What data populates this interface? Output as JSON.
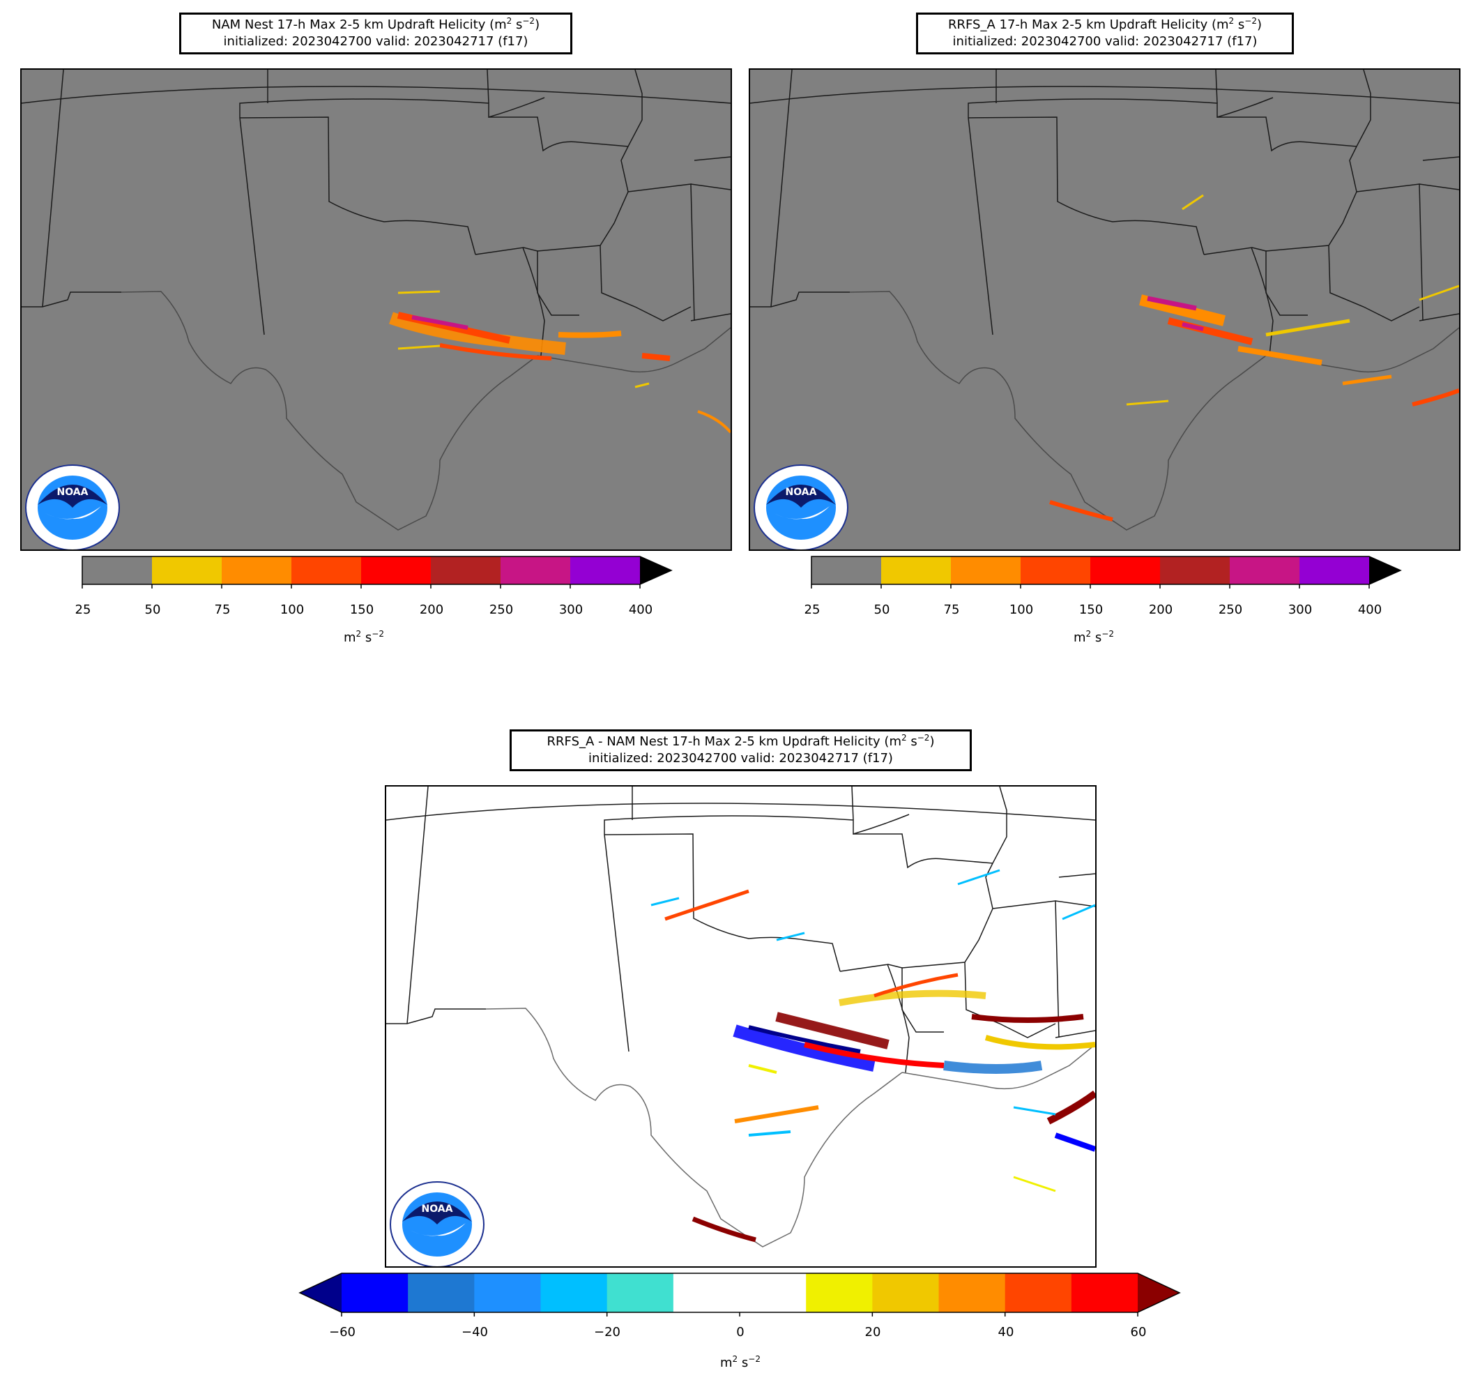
{
  "panels": [
    {
      "id": "nam",
      "title_line1": "NAM Nest 17-h Max 2-5 km Updraft Helicity (m",
      "title_sup1": "2",
      "title_mid": " s",
      "title_sup2": "−2",
      "title_end": ")",
      "title_line2": "initialized: 2023042700 valid: 2023042717 (f17)",
      "background": "#808080"
    },
    {
      "id": "rrfs",
      "title_line1": "RRFS_A 17-h Max 2-5 km Updraft Helicity (m",
      "title_sup1": "2",
      "title_mid": " s",
      "title_sup2": "−2",
      "title_end": ")",
      "title_line2": "initialized: 2023042700 valid: 2023042717 (f17)",
      "background": "#808080"
    },
    {
      "id": "diff",
      "title_line1": "RRFS_A - NAM Nest 17-h Max 2-5 km Updraft Helicity (m",
      "title_sup1": "2",
      "title_mid": " s",
      "title_sup2": "−2",
      "title_end": ")",
      "title_line2": "initialized: 2023042700 valid: 2023042717 (f17)",
      "background": "#ffffff"
    }
  ],
  "colorbar_top": {
    "ticks": [
      "25",
      "50",
      "75",
      "100",
      "150",
      "200",
      "250",
      "300",
      "400"
    ],
    "colors": [
      "#808080",
      "#f0c800",
      "#ff8c00",
      "#ff4500",
      "#ff0000",
      "#b22222",
      "#c71585",
      "#9400d3"
    ],
    "extend_color": "#000000",
    "unit_base": "m",
    "unit_sup1": "2",
    "unit_mid": " s",
    "unit_sup2": "−2"
  },
  "colorbar_bottom": {
    "ticks": [
      "−60",
      "−40",
      "−20",
      "0",
      "20",
      "40",
      "60"
    ],
    "colors": [
      "#0000ff",
      "#1e78d2",
      "#1e90ff",
      "#00bfff",
      "#40e0d0",
      "#ffffff",
      "#ffffff",
      "#f0f000",
      "#f0c800",
      "#ff8c00",
      "#ff4500",
      "#ff0000"
    ],
    "extend_low_color": "#00008b",
    "extend_high_color": "#8b0000",
    "unit_base": "m",
    "unit_sup1": "2",
    "unit_mid": " s",
    "unit_sup2": "−2"
  },
  "logo": {
    "center_text": "NOAA",
    "ring_text_top": "NATIONAL OCEANIC AND ATMOSPHERIC ADMINISTRATION",
    "ring_text_bottom": "U.S. DEPARTMENT OF COMMERCE"
  }
}
